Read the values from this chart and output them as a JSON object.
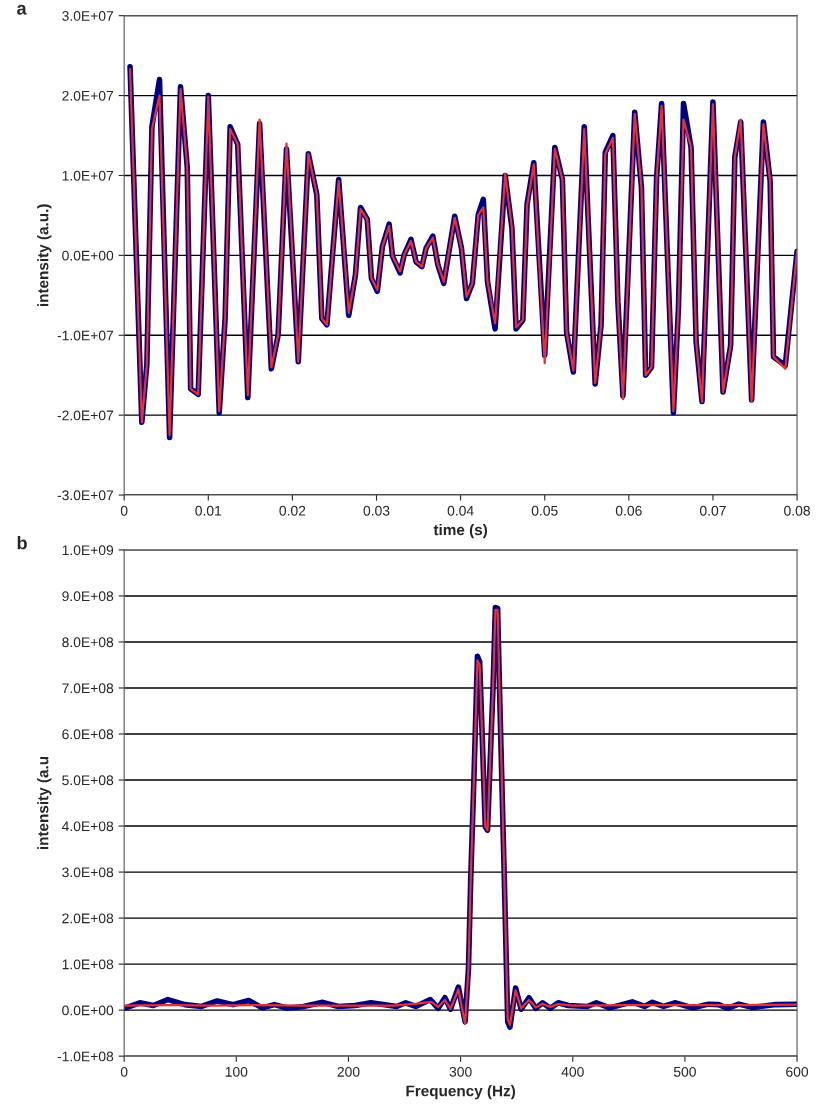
{
  "chart_data": [
    {
      "type": "line",
      "title": "a",
      "xlabel": "time (s)",
      "ylabel": "intensity (a.u.)",
      "xlim": [
        0,
        0.08
      ],
      "ylim": [
        -30000000.0,
        30000000.0
      ],
      "xticks": [
        0,
        0.01,
        0.02,
        0.03,
        0.04,
        0.05,
        0.06,
        0.07,
        0.08
      ],
      "yticks": [
        {
          "value": -30000000.0,
          "label": "-3.0E+07"
        },
        {
          "value": -20000000.0,
          "label": "-2.0E+07"
        },
        {
          "value": -10000000.0,
          "label": "-1.0E+07"
        },
        {
          "value": 0,
          "label": "0.0E+00"
        },
        {
          "value": 10000000.0,
          "label": "1.0E+07"
        },
        {
          "value": 20000000.0,
          "label": "2.0E+07"
        },
        {
          "value": 30000000.0,
          "label": "3.0E+07"
        }
      ],
      "grid": "y",
      "line_style": "solid",
      "marker": "none",
      "series": [
        {
          "color": "#000080",
          "x": [
            0.0007,
            0.0021,
            0.0027,
            0.0033,
            0.0042,
            0.0054,
            0.0067,
            0.0075,
            0.0079,
            0.0088,
            0.01,
            0.0113,
            0.012,
            0.0126,
            0.0135,
            0.0147,
            0.0161,
            0.0175,
            0.0183,
            0.0193,
            0.0207,
            0.0219,
            0.0229,
            0.0235,
            0.0241,
            0.0255,
            0.0267,
            0.0275,
            0.0281,
            0.0289,
            0.0294,
            0.0301,
            0.0307,
            0.0315,
            0.0319,
            0.0328,
            0.0333,
            0.0341,
            0.0347,
            0.0354,
            0.0359,
            0.0367,
            0.0373,
            0.038,
            0.0393,
            0.0401,
            0.0407,
            0.0414,
            0.0421,
            0.0427,
            0.0432,
            0.0441,
            0.0453,
            0.0461,
            0.0466,
            0.0474,
            0.0479,
            0.0487,
            0.05,
            0.0512,
            0.0521,
            0.0526,
            0.0534,
            0.0547,
            0.056,
            0.0567,
            0.0572,
            0.0581,
            0.0587,
            0.0593,
            0.0607,
            0.0615,
            0.062,
            0.0627,
            0.0633,
            0.0639,
            0.0653,
            0.0659,
            0.0665,
            0.0674,
            0.068,
            0.0687,
            0.07,
            0.0712,
            0.0721,
            0.0726,
            0.0733,
            0.0746,
            0.076,
            0.0768,
            0.0772,
            0.0786,
            0.08
          ],
          "values": [
            23600000.0,
            -20900000.0,
            -13600000.0,
            16100000.0,
            22000000.0,
            -22800000.0,
            21100000.0,
            11000000.0,
            -16700000.0,
            -17400000.0,
            20000000.0,
            -19700000.0,
            -7900000.0,
            16100000.0,
            13900000.0,
            -17800000.0,
            16500000.0,
            -14200000.0,
            -10000000.0,
            13300000.0,
            -13300000.0,
            12700000.0,
            7600000.0,
            -7900000.0,
            -8700000.0,
            9500000.0,
            -7500000.0,
            -2400000.0,
            6000000.0,
            4500000.0,
            -2900000.0,
            -4500000.0,
            1100000.0,
            3900000.0,
            -100000.0,
            -2200000.0,
            100000.0,
            2000000.0,
            -800000.0,
            -1400000.0,
            900000.0,
            2400000.0,
            -1200000.0,
            -3500000.0,
            4900000.0,
            900000.0,
            -5400000.0,
            -3500000.0,
            5100000.0,
            7000000.0,
            -3300000.0,
            -9200000.0,
            10000000.0,
            3400000.0,
            -9200000.0,
            -8100000.0,
            6400000.0,
            11600000.0,
            -12500000.0,
            13500000.0,
            9500000.0,
            -9600000.0,
            -14600000.0,
            16100000.0,
            -16100000.0,
            -8700000.0,
            12900000.0,
            15000000.0,
            -5800000.0,
            -17600000.0,
            17900000.0,
            8500000.0,
            -15000000.0,
            -14000000.0,
            9700000.0,
            19000000.0,
            -19700000.0,
            -6600000.0,
            19000000.0,
            13500000.0,
            -10800000.0,
            -18300000.0,
            19200000.0,
            -17100000.0,
            -11300000.0,
            12300000.0,
            16700000.0,
            -18100000.0,
            16700000.0,
            9300000.0,
            -12700000.0,
            -13800000.0,
            500000.0
          ]
        },
        {
          "color": "#e8312f",
          "x": [
            0.0007,
            0.0021,
            0.0027,
            0.0033,
            0.0042,
            0.0054,
            0.0067,
            0.0075,
            0.0079,
            0.0088,
            0.01,
            0.0113,
            0.012,
            0.0126,
            0.0135,
            0.0147,
            0.0161,
            0.0175,
            0.0183,
            0.0193,
            0.0207,
            0.0219,
            0.0229,
            0.0235,
            0.0241,
            0.0255,
            0.0267,
            0.0275,
            0.0281,
            0.0289,
            0.0294,
            0.0301,
            0.0307,
            0.0315,
            0.0319,
            0.0328,
            0.0333,
            0.0341,
            0.0347,
            0.0354,
            0.0359,
            0.0367,
            0.0373,
            0.038,
            0.0393,
            0.0401,
            0.0407,
            0.0414,
            0.0421,
            0.0427,
            0.0432,
            0.0441,
            0.0453,
            0.0461,
            0.0466,
            0.0474,
            0.0479,
            0.0487,
            0.05,
            0.0512,
            0.0521,
            0.0526,
            0.0534,
            0.0547,
            0.056,
            0.0567,
            0.0572,
            0.0581,
            0.0587,
            0.0593,
            0.0607,
            0.0615,
            0.062,
            0.0627,
            0.0633,
            0.0639,
            0.0653,
            0.0659,
            0.0665,
            0.0674,
            0.068,
            0.0687,
            0.07,
            0.0712,
            0.0721,
            0.0726,
            0.0733,
            0.0746,
            0.076,
            0.0768,
            0.0772,
            0.0786,
            0.08
          ],
          "values": [
            23300000.0,
            -20900000.0,
            -13600000.0,
            15800000.0,
            20000000.0,
            -22500000.0,
            20800000.0,
            11000000.0,
            -16700000.0,
            -17400000.0,
            19800000.0,
            -19500000.0,
            -7900000.0,
            15800000.0,
            13900000.0,
            -17500000.0,
            17000000.0,
            -14000000.0,
            -10000000.0,
            14000000.0,
            -13300000.0,
            12700000.0,
            7600000.0,
            -7900000.0,
            -8700000.0,
            9300000.0,
            -7200000.0,
            -2400000.0,
            5800000.0,
            4500000.0,
            -2900000.0,
            -4300000.0,
            1100000.0,
            3700000.0,
            -100000.0,
            -2000000.0,
            100000.0,
            1800000.0,
            -800000.0,
            -1400000.0,
            900000.0,
            2200000.0,
            -1200000.0,
            -3300000.0,
            4700000.0,
            900000.0,
            -5200000.0,
            -3500000.0,
            5100000.0,
            6000000.0,
            -3300000.0,
            -8500000.0,
            10200000.0,
            3400000.0,
            -9000000.0,
            -8100000.0,
            6200000.0,
            11400000.0,
            -13500000.0,
            13300000.0,
            9500000.0,
            -9600000.0,
            -14400000.0,
            15800000.0,
            -16000000.0,
            -8700000.0,
            12700000.0,
            14700000.0,
            -5800000.0,
            -18000000.0,
            17700000.0,
            8500000.0,
            -15000000.0,
            -14000000.0,
            9700000.0,
            18700000.0,
            -19500000.0,
            -6600000.0,
            17000000.0,
            13500000.0,
            -10800000.0,
            -18300000.0,
            18900000.0,
            -17100000.0,
            -11300000.0,
            12300000.0,
            17000000.0,
            -18300000.0,
            16400000.0,
            9300000.0,
            -12700000.0,
            -14200000.0,
            500000.0
          ]
        }
      ]
    },
    {
      "type": "line",
      "title": "b",
      "xlabel": "Frequency (Hz)",
      "ylabel": "intensity (a.u",
      "xlim": [
        0,
        600
      ],
      "ylim": [
        -100000000.0,
        1000000000.0
      ],
      "xticks": [
        0,
        100,
        200,
        300,
        400,
        500,
        600
      ],
      "yticks": [
        {
          "value": -100000000.0,
          "label": "-1.0E+08"
        },
        {
          "value": 0,
          "label": "0.0E+00"
        },
        {
          "value": 100000000.0,
          "label": "1.0E+08"
        },
        {
          "value": 200000000.0,
          "label": "2.0E+08"
        },
        {
          "value": 300000000.0,
          "label": "3.0E+08"
        },
        {
          "value": 400000000.0,
          "label": "4.0E+08"
        },
        {
          "value": 500000000.0,
          "label": "5.0E+08"
        },
        {
          "value": 600000000.0,
          "label": "6.0E+08"
        },
        {
          "value": 700000000.0,
          "label": "7.0E+08"
        },
        {
          "value": 800000000.0,
          "label": "8.0E+08"
        },
        {
          "value": 900000000.0,
          "label": "9.0E+08"
        },
        {
          "value": 1000000000.0,
          "label": "1.0E+09"
        }
      ],
      "grid": "y",
      "line_style": "solid",
      "marker": "none",
      "series": [
        {
          "color": "#000080",
          "x": [
            0,
            14,
            26,
            39,
            54,
            69,
            83,
            97,
            111,
            123,
            134,
            146,
            160,
            177,
            191,
            206,
            220,
            231,
            243,
            251,
            260,
            273,
            280,
            286,
            291,
            298,
            304,
            307,
            309,
            312,
            315,
            317,
            322,
            324,
            329,
            331,
            333,
            335,
            339,
            342,
            344,
            349,
            354,
            361,
            367,
            373,
            380,
            387,
            396,
            413,
            421,
            433,
            453,
            464,
            471,
            481,
            491,
            507,
            521,
            530,
            538,
            548,
            560,
            581,
            600
          ],
          "values": [
            4000000.0,
            16000000.0,
            10000000.0,
            23000000.0,
            12000000.0,
            8000000.0,
            20000000.0,
            12000000.0,
            21000000.0,
            5000000.0,
            12000000.0,
            4000000.0,
            8000000.0,
            17000000.0,
            8000000.0,
            10000000.0,
            16000000.0,
            12000000.0,
            8000000.0,
            16000000.0,
            8000000.0,
            23000000.0,
            4000000.0,
            27000000.0,
            2000000.0,
            50000000.0,
            -25000000.0,
            90000000.0,
            283000000.0,
            514000000.0,
            769000000.0,
            757000000.0,
            399000000.0,
            391000000.0,
            707000000.0,
            875000000.0,
            873000000.0,
            668000000.0,
            283000000.0,
            -25000000.0,
            -37000000.0,
            48000000.0,
            2000000.0,
            27000000.0,
            4000000.0,
            16000000.0,
            4000000.0,
            16000000.0,
            10000000.0,
            8000000.0,
            16000000.0,
            5000000.0,
            18000000.0,
            8000000.0,
            17000000.0,
            8000000.0,
            16000000.0,
            5000000.0,
            13000000.0,
            12000000.0,
            4000000.0,
            13000000.0,
            6000000.0,
            12000000.0,
            13000000.0
          ]
        },
        {
          "color": "#e8312f",
          "x": [
            0,
            40,
            80,
            120,
            160,
            200,
            240,
            261,
            274,
            280,
            286,
            291,
            298,
            304,
            307,
            309,
            312,
            315,
            317,
            322,
            324,
            329,
            331,
            333,
            335,
            339,
            342,
            344,
            349,
            354,
            361,
            367,
            373,
            380,
            387,
            400,
            450,
            500,
            550,
            600
          ],
          "values": [
            10000000.0,
            11000000.0,
            10000000.0,
            11000000.0,
            10000000.0,
            10000000.0,
            10000000.0,
            14000000.0,
            18000000.0,
            7000000.0,
            22000000.0,
            3000000.0,
            45000000.0,
            -30000000.0,
            90000000.0,
            283000000.0,
            514000000.0,
            760000000.0,
            750000000.0,
            399000000.0,
            391000000.0,
            707000000.0,
            870000000.0,
            870000000.0,
            668000000.0,
            283000000.0,
            -20000000.0,
            -32000000.0,
            43000000.0,
            4000000.0,
            22000000.0,
            6000000.0,
            14000000.0,
            7000000.0,
            13000000.0,
            10000000.0,
            11000000.0,
            11000000.0,
            11000000.0,
            12000000.0
          ]
        }
      ]
    }
  ]
}
